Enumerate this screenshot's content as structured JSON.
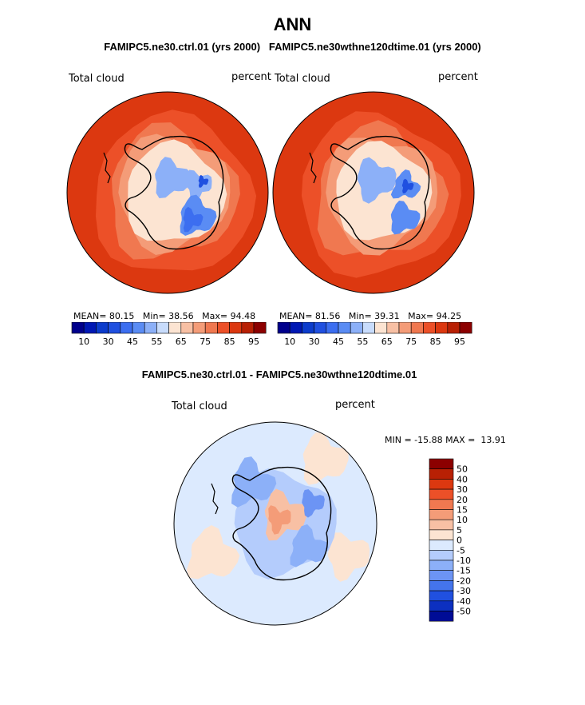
{
  "page": {
    "main_title": "ANN",
    "subtitle": "FAMIPC5.ne30.ctrl.01 (yrs 2000)   FAMIPC5.ne30wthne120dtime.01 (yrs 2000)",
    "diff_title": "FAMIPC5.ne30.ctrl.01 - FAMIPC5.ne30wthne120dtime.01"
  },
  "chart_data": [
    {
      "type": "heatmap",
      "projection": "polar stereographic (south pole)",
      "variable_label": "Total cloud",
      "units_label": "percent",
      "stats": {
        "mean_label": "MEAN=",
        "mean": "80.15",
        "min_label": "Min=",
        "min": "38.56",
        "max_label": "Max=",
        "max": "94.48"
      },
      "colorbar": {
        "orientation": "horizontal",
        "tick_labels": [
          "10",
          "30",
          "45",
          "55",
          "65",
          "75",
          "85",
          "95"
        ],
        "colors": [
          "#00008c",
          "#0018b4",
          "#0c3ccc",
          "#2050e0",
          "#3c6ef0",
          "#5a8cf4",
          "#8cb0f8",
          "#c8dcfc",
          "#fce4d2",
          "#f8c0a4",
          "#f49c78",
          "#f07850",
          "#ec5028",
          "#dc3810",
          "#b82004",
          "#8c0000"
        ]
      }
    },
    {
      "type": "heatmap",
      "projection": "polar stereographic (south pole)",
      "variable_label": "Total cloud",
      "units_label": "percent",
      "stats": {
        "mean_label": "MEAN=",
        "mean": "81.56",
        "min_label": "Min=",
        "min": "39.31",
        "max_label": "Max=",
        "max": "94.25"
      },
      "colorbar": {
        "orientation": "horizontal",
        "tick_labels": [
          "10",
          "30",
          "45",
          "55",
          "65",
          "75",
          "85",
          "95"
        ],
        "colors": [
          "#00008c",
          "#0018b4",
          "#0c3ccc",
          "#2050e0",
          "#3c6ef0",
          "#5a8cf4",
          "#8cb0f8",
          "#c8dcfc",
          "#fce4d2",
          "#f8c0a4",
          "#f49c78",
          "#f07850",
          "#ec5028",
          "#dc3810",
          "#b82004",
          "#8c0000"
        ]
      }
    },
    {
      "type": "heatmap",
      "projection": "polar stereographic (south pole)",
      "variable_label": "Total cloud",
      "units_label": "percent",
      "stats_text": "MIN = -15.88 MAX =  13.91",
      "colorbar": {
        "orientation": "vertical",
        "tick_labels": [
          "50",
          "40",
          "30",
          "20",
          "15",
          "10",
          "5",
          "0",
          "-5",
          "-10",
          "-15",
          "-20",
          "-30",
          "-40",
          "-50"
        ],
        "colors": [
          "#8c0000",
          "#b82004",
          "#dc3810",
          "#ec5028",
          "#f07850",
          "#f49c78",
          "#f8c0a4",
          "#fce4d2",
          "#dceafe",
          "#b4ccfc",
          "#8cb0f8",
          "#6c94f4",
          "#4474ec",
          "#2050e0",
          "#0c30c0",
          "#000c96"
        ]
      }
    }
  ]
}
